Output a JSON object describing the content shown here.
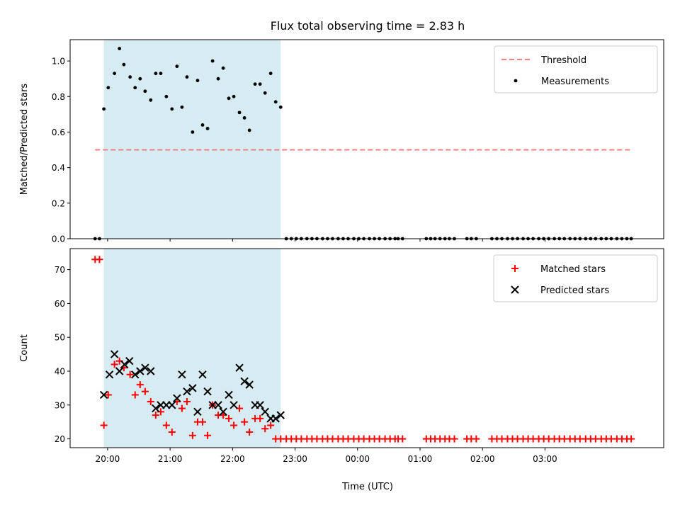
{
  "chart_data": {
    "title": "Flux total observing time = 2.83 h",
    "x_tick_labels": [
      "20:00",
      "21:00",
      "22:00",
      "23:00",
      "00:00",
      "01:00",
      "02:00",
      "03:00"
    ],
    "x_tick_hours": [
      20,
      21,
      22,
      23,
      24,
      25,
      26,
      27
    ],
    "xlabel": "Time (UTC)",
    "xlim_hours": [
      19.4,
      28.9
    ],
    "shaded_interval_hours": [
      19.94,
      22.77
    ],
    "shade_color": "#add8e6",
    "panels": [
      {
        "type": "scatter",
        "ylabel": "Matched/Predicted stars",
        "ylim": [
          0,
          1.12
        ],
        "yticks": [
          0.0,
          0.2,
          0.4,
          0.6,
          0.8,
          1.0
        ],
        "y_tick_labels": [
          "0.0",
          "0.2",
          "0.4",
          "0.6",
          "0.8",
          "1.0"
        ],
        "legend_position": "upper right",
        "threshold": {
          "name": "Threshold",
          "value": 0.5,
          "x_start": 19.8,
          "x_end": 28.38,
          "color": "#f08080",
          "style": "dashed"
        },
        "series": [
          {
            "name": "Measurements",
            "marker": "dot",
            "color": "#000000",
            "x": [
              19.8,
              19.87,
              19.94,
              20.01,
              20.11,
              20.19,
              20.26,
              20.36,
              20.44,
              20.52,
              20.6,
              20.69,
              20.77,
              20.85,
              20.94,
              21.03,
              21.11,
              21.19,
              21.27,
              21.36,
              21.44,
              21.52,
              21.6,
              21.68,
              21.77,
              21.85,
              21.94,
              22.02,
              22.11,
              22.19,
              22.27,
              22.36,
              22.44,
              22.52,
              22.61,
              22.69,
              22.77,
              22.86,
              22.94,
              23.02,
              23.1,
              23.19,
              23.27,
              23.35,
              23.44,
              23.52,
              23.6,
              23.69,
              23.77,
              23.85,
              23.94,
              24.02,
              24.1,
              24.19,
              24.27,
              24.35,
              24.44,
              24.52,
              24.6,
              24.65,
              24.72,
              25.1,
              25.17,
              25.24,
              25.32,
              25.4,
              25.47,
              25.55,
              25.75,
              25.82,
              25.9,
              26.15,
              26.23,
              26.31,
              26.4,
              26.48,
              26.56,
              26.65,
              26.73,
              26.81,
              26.9,
              26.98,
              27.06,
              27.15,
              27.23,
              27.31,
              27.4,
              27.48,
              27.56,
              27.65,
              27.73,
              27.81,
              27.9,
              27.98,
              28.06,
              28.15,
              28.23,
              28.31,
              28.38
            ],
            "y": [
              0.0,
              0.0,
              0.73,
              0.85,
              0.93,
              1.07,
              0.98,
              0.91,
              0.85,
              0.9,
              0.83,
              0.78,
              0.93,
              0.93,
              0.8,
              0.73,
              0.97,
              0.74,
              0.91,
              0.6,
              0.89,
              0.64,
              0.62,
              1.0,
              0.9,
              0.96,
              0.79,
              0.8,
              0.71,
              0.68,
              0.61,
              0.87,
              0.87,
              0.82,
              0.93,
              0.77,
              0.74,
              0.0,
              0.0,
              0.0,
              0.0,
              0.0,
              0.0,
              0.0,
              0.0,
              0.0,
              0.0,
              0.0,
              0.0,
              0.0,
              0.0,
              0.0,
              0.0,
              0.0,
              0.0,
              0.0,
              0.0,
              0.0,
              0.0,
              0.0,
              0.0,
              0.0,
              0.0,
              0.0,
              0.0,
              0.0,
              0.0,
              0.0,
              0.0,
              0.0,
              0.0,
              0.0,
              0.0,
              0.0,
              0.0,
              0.0,
              0.0,
              0.0,
              0.0,
              0.0,
              0.0,
              0.0,
              0.0,
              0.0,
              0.0,
              0.0,
              0.0,
              0.0,
              0.0,
              0.0,
              0.0,
              0.0,
              0.0,
              0.0,
              0.0,
              0.0,
              0.0,
              0.0,
              0.0
            ]
          }
        ]
      },
      {
        "type": "scatter",
        "ylabel": "Count",
        "ylim": [
          17.4,
          76.2
        ],
        "yticks": [
          20,
          30,
          40,
          50,
          60,
          70
        ],
        "y_tick_labels": [
          "20",
          "30",
          "40",
          "50",
          "60",
          "70"
        ],
        "legend_position": "upper right",
        "series": [
          {
            "name": "Matched stars",
            "marker": "plus",
            "color": "#ff0000",
            "x": [
              19.8,
              19.87,
              19.94,
              20.01,
              20.11,
              20.19,
              20.26,
              20.36,
              20.44,
              20.52,
              20.6,
              20.69,
              20.77,
              20.85,
              20.94,
              21.03,
              21.11,
              21.19,
              21.27,
              21.36,
              21.44,
              21.52,
              21.6,
              21.68,
              21.77,
              21.85,
              21.94,
              22.02,
              22.11,
              22.19,
              22.27,
              22.36,
              22.44,
              22.52,
              22.61,
              22.69,
              22.77,
              22.86,
              22.94,
              23.02,
              23.1,
              23.19,
              23.27,
              23.35,
              23.44,
              23.52,
              23.6,
              23.69,
              23.77,
              23.85,
              23.94,
              24.02,
              24.1,
              24.19,
              24.27,
              24.35,
              24.44,
              24.52,
              24.6,
              24.65,
              24.72,
              25.1,
              25.17,
              25.24,
              25.32,
              25.4,
              25.47,
              25.55,
              25.75,
              25.82,
              25.9,
              26.15,
              26.23,
              26.31,
              26.4,
              26.48,
              26.56,
              26.65,
              26.73,
              26.81,
              26.9,
              26.98,
              27.06,
              27.15,
              27.23,
              27.31,
              27.4,
              27.48,
              27.56,
              27.65,
              27.73,
              27.81,
              27.9,
              27.98,
              28.06,
              28.15,
              28.23,
              28.31,
              28.38
            ],
            "y": [
              73,
              73,
              24,
              33,
              42,
              43,
              41,
              39,
              33,
              36,
              34,
              31,
              27,
              28,
              24,
              22,
              31,
              29,
              31,
              21,
              25,
              25,
              21,
              30,
              27,
              27,
              26,
              24,
              29,
              25,
              22,
              26,
              26,
              23,
              24,
              20,
              20,
              20,
              20,
              20,
              20,
              20,
              20,
              20,
              20,
              20,
              20,
              20,
              20,
              20,
              20,
              20,
              20,
              20,
              20,
              20,
              20,
              20,
              20,
              20,
              20,
              20,
              20,
              20,
              20,
              20,
              20,
              20,
              20,
              20,
              20,
              20,
              20,
              20,
              20,
              20,
              20,
              20,
              20,
              20,
              20,
              20,
              20,
              20,
              20,
              20,
              20,
              20,
              20,
              20,
              20,
              20,
              20,
              20,
              20,
              20,
              20,
              20,
              20
            ]
          },
          {
            "name": "Predicted stars",
            "marker": "x",
            "color": "#000000",
            "x": [
              19.94,
              20.03,
              20.11,
              20.19,
              20.27,
              20.35,
              20.44,
              20.52,
              20.6,
              20.69,
              20.77,
              20.85,
              20.94,
              21.03,
              21.11,
              21.19,
              21.27,
              21.36,
              21.44,
              21.52,
              21.6,
              21.68,
              21.77,
              21.85,
              21.94,
              22.02,
              22.11,
              22.19,
              22.27,
              22.36,
              22.44,
              22.52,
              22.61,
              22.69,
              22.77
            ],
            "y": [
              33,
              39,
              45,
              40,
              42,
              43,
              39,
              40,
              41,
              40,
              29,
              30,
              30,
              30,
              32,
              39,
              34,
              35,
              28,
              39,
              34,
              30,
              30,
              28,
              33,
              30,
              41,
              37,
              36,
              30,
              30,
              28,
              26,
              26,
              27
            ]
          }
        ]
      }
    ]
  }
}
